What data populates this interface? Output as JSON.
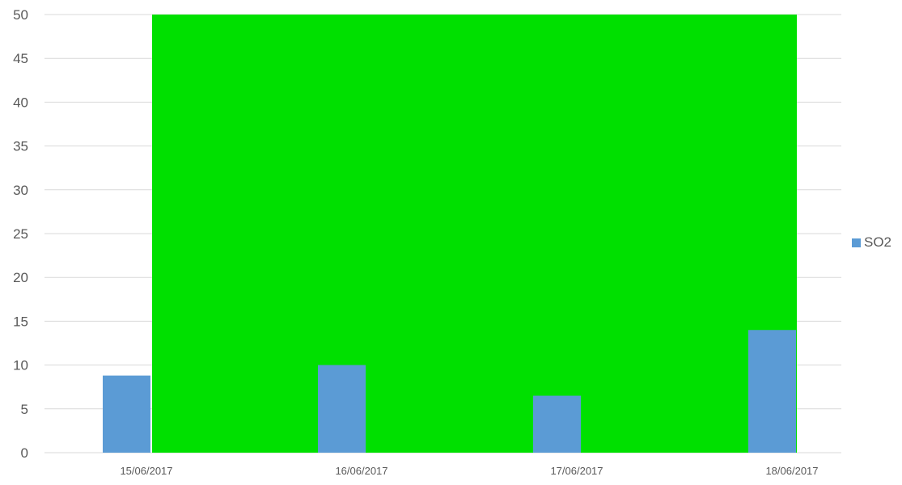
{
  "chart_data": {
    "type": "bar",
    "categories": [
      "15/06/2017",
      "16/06/2017",
      "17/06/2017",
      "18/06/2017"
    ],
    "series": [
      {
        "name": "SO2",
        "values": [
          8.8,
          10,
          6.5,
          14
        ],
        "color": "#5B9BD5"
      }
    ],
    "background_band": {
      "y_value": 50,
      "from_category": "15/06/2017",
      "to_category": "18/06/2017",
      "color": "#00E000"
    },
    "yticks": [
      0,
      5,
      10,
      15,
      20,
      25,
      30,
      35,
      40,
      45,
      50
    ],
    "ylim": [
      0,
      50
    ],
    "grid": true,
    "legend_position": "right",
    "gridline_color": "#D9D9D9",
    "tick_label_color": "#595959"
  }
}
